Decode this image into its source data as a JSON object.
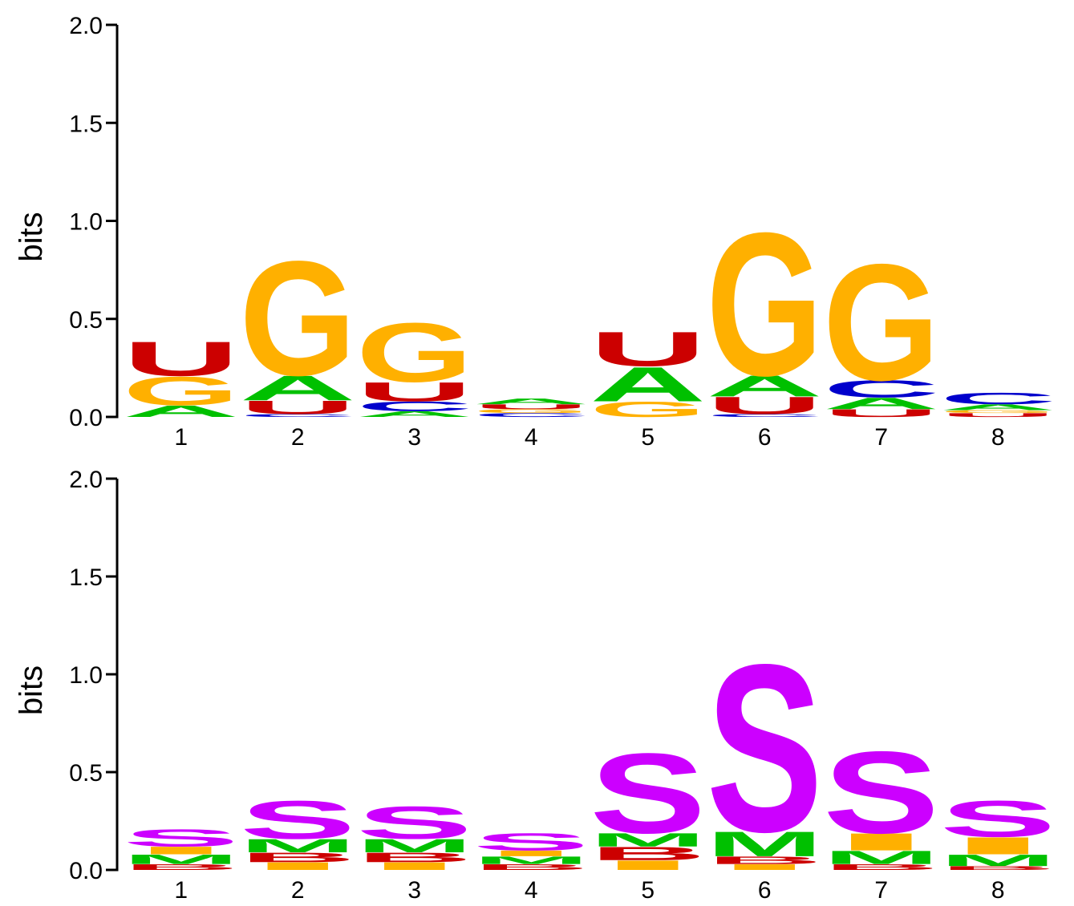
{
  "chart_data": [
    {
      "type": "sequence-logo",
      "alphabet": "RNA",
      "ylabel": "bits",
      "ylim": [
        0,
        2.0
      ],
      "yticks": [
        "0.0",
        "0.5",
        "1.0",
        "1.5",
        "2.0"
      ],
      "positions": [
        "1",
        "2",
        "3",
        "4",
        "5",
        "6",
        "7",
        "8"
      ],
      "colors": {
        "A": "#00c000",
        "C": "#0000cc",
        "G": "#ffb000",
        "U": "#cc0000"
      },
      "stacks": [
        [
          {
            "letter": "A",
            "height": 0.06
          },
          {
            "letter": "G",
            "height": 0.15
          },
          {
            "letter": "U",
            "height": 0.18
          }
        ],
        [
          {
            "letter": "C",
            "height": 0.015
          },
          {
            "letter": "U",
            "height": 0.07
          },
          {
            "letter": "A",
            "height": 0.13
          },
          {
            "letter": "G",
            "height": 0.6
          }
        ],
        [
          {
            "letter": "A",
            "height": 0.03
          },
          {
            "letter": "C",
            "height": 0.05
          },
          {
            "letter": "U",
            "height": 0.1
          },
          {
            "letter": "G",
            "height": 0.31
          }
        ],
        [
          {
            "letter": "C",
            "height": 0.02
          },
          {
            "letter": "G",
            "height": 0.02
          },
          {
            "letter": "U",
            "height": 0.025
          },
          {
            "letter": "A",
            "height": 0.03
          }
        ],
        [
          {
            "letter": "G",
            "height": 0.08
          },
          {
            "letter": "A",
            "height": 0.18
          },
          {
            "letter": "U",
            "height": 0.18
          }
        ],
        [
          {
            "letter": "C",
            "height": 0.015
          },
          {
            "letter": "U",
            "height": 0.09
          },
          {
            "letter": "A",
            "height": 0.11
          },
          {
            "letter": "G",
            "height": 0.75
          }
        ],
        [
          {
            "letter": "U",
            "height": 0.04
          },
          {
            "letter": "A",
            "height": 0.06
          },
          {
            "letter": "C",
            "height": 0.09
          },
          {
            "letter": "G",
            "height": 0.61
          }
        ],
        [
          {
            "letter": "U",
            "height": 0.02
          },
          {
            "letter": "G",
            "height": 0.015
          },
          {
            "letter": "A",
            "height": 0.03
          },
          {
            "letter": "C",
            "height": 0.06
          }
        ]
      ]
    },
    {
      "type": "sequence-logo",
      "alphabet": "structure",
      "ylabel": "bits",
      "ylim": [
        0,
        2.0
      ],
      "yticks": [
        "0.0",
        "0.5",
        "1.0",
        "1.5",
        "2.0"
      ],
      "positions": [
        "1",
        "2",
        "3",
        "4",
        "5",
        "6",
        "7",
        "8"
      ],
      "colors": {
        "S": "#cc00ff",
        "M": "#00c000",
        "I": "#ffb000",
        "B": "#cc0000",
        "H": "#ffb000"
      },
      "stacks": [
        [
          {
            "letter": "B",
            "height": 0.03
          },
          {
            "letter": "M",
            "height": 0.05
          },
          {
            "letter": "I",
            "height": 0.04
          },
          {
            "letter": "S",
            "height": 0.09
          }
        ],
        [
          {
            "letter": "I",
            "height": 0.04
          },
          {
            "letter": "B",
            "height": 0.05
          },
          {
            "letter": "M",
            "height": 0.07
          },
          {
            "letter": "S",
            "height": 0.2
          }
        ],
        [
          {
            "letter": "I",
            "height": 0.04
          },
          {
            "letter": "B",
            "height": 0.05
          },
          {
            "letter": "M",
            "height": 0.07
          },
          {
            "letter": "S",
            "height": 0.17
          }
        ],
        [
          {
            "letter": "B",
            "height": 0.03
          },
          {
            "letter": "M",
            "height": 0.04
          },
          {
            "letter": "I",
            "height": 0.03
          },
          {
            "letter": "S",
            "height": 0.09
          }
        ],
        [
          {
            "letter": "I",
            "height": 0.05
          },
          {
            "letter": "B",
            "height": 0.07
          },
          {
            "letter": "M",
            "height": 0.07
          },
          {
            "letter": "S",
            "height": 0.42
          }
        ],
        [
          {
            "letter": "I",
            "height": 0.03
          },
          {
            "letter": "B",
            "height": 0.04
          },
          {
            "letter": "M",
            "height": 0.13
          },
          {
            "letter": "S",
            "height": 0.88
          }
        ],
        [
          {
            "letter": "B",
            "height": 0.03
          },
          {
            "letter": "M",
            "height": 0.07
          },
          {
            "letter": "I",
            "height": 0.09
          },
          {
            "letter": "S",
            "height": 0.43
          }
        ],
        [
          {
            "letter": "B",
            "height": 0.02
          },
          {
            "letter": "M",
            "height": 0.06
          },
          {
            "letter": "I",
            "height": 0.09
          },
          {
            "letter": "S",
            "height": 0.19
          }
        ]
      ]
    }
  ]
}
